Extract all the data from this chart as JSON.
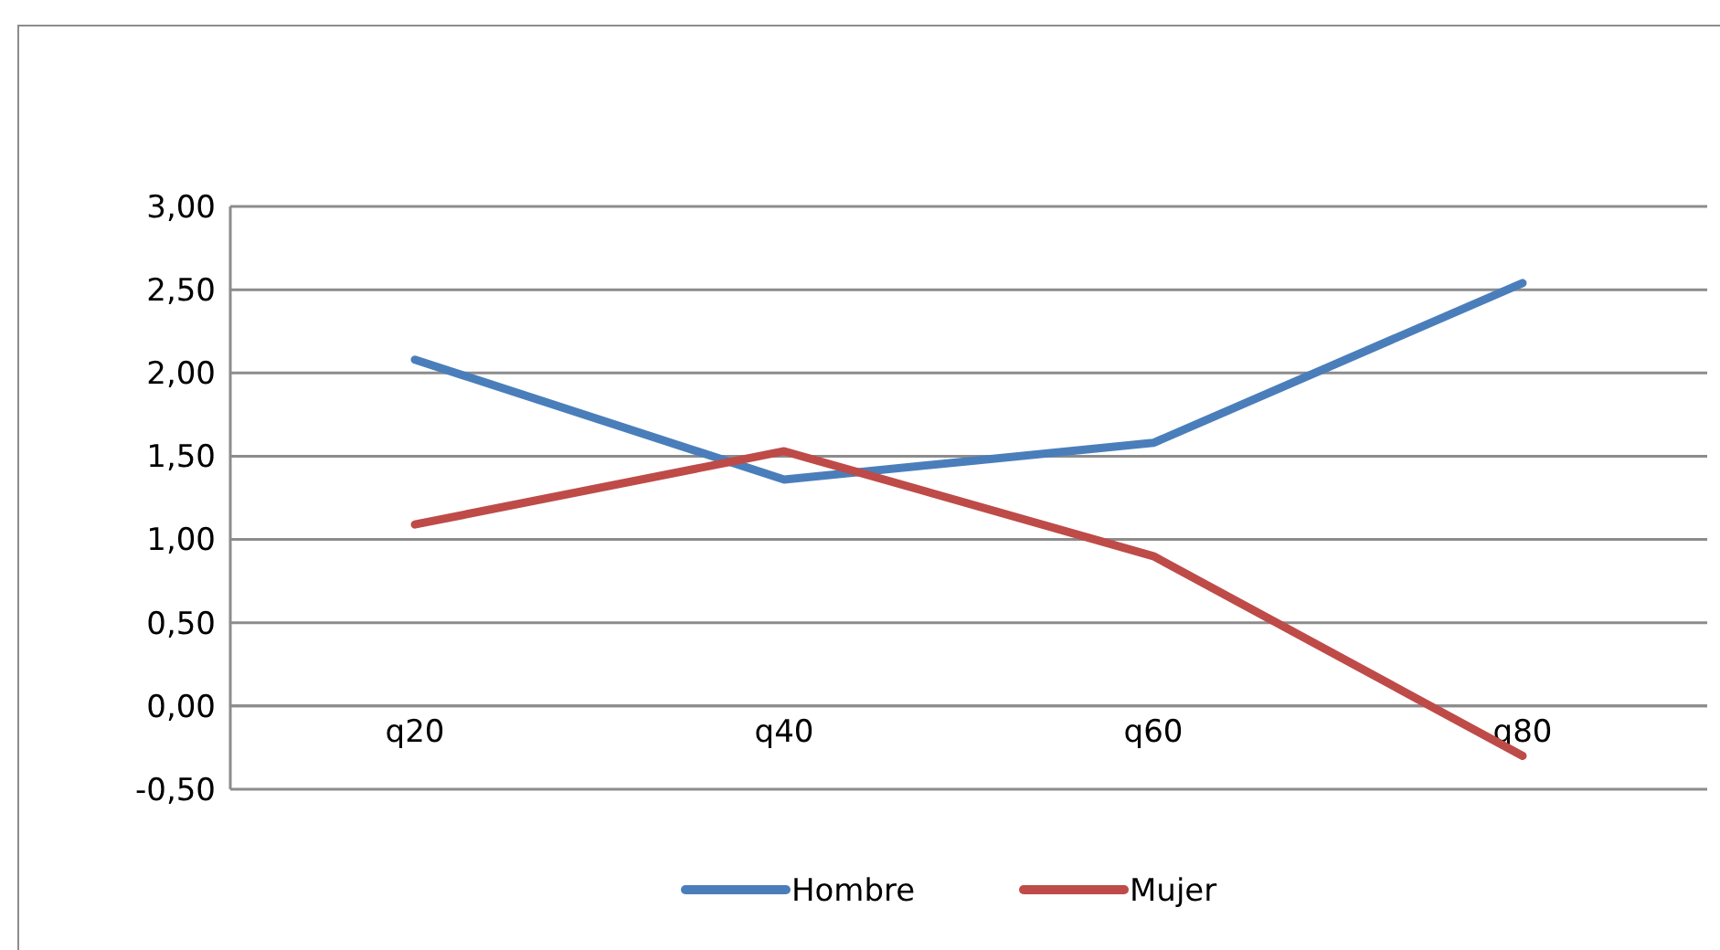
{
  "chart_data": {
    "type": "line",
    "categories": [
      "q20",
      "q40",
      "q60",
      "q80"
    ],
    "series": [
      {
        "name": "Hombre",
        "color": "#4a7ebb",
        "values": [
          2.08,
          1.36,
          1.58,
          2.54
        ]
      },
      {
        "name": "Mujer",
        "color": "#be4b48",
        "values": [
          1.09,
          1.53,
          0.9,
          -0.3
        ]
      }
    ],
    "ylim": [
      -0.5,
      3
    ],
    "yticks": [
      {
        "value": -0.5,
        "label": "-0,50"
      },
      {
        "value": 0,
        "label": "0,00"
      },
      {
        "value": 0.5,
        "label": "0,50"
      },
      {
        "value": 1,
        "label": "1,00"
      },
      {
        "value": 1.5,
        "label": "1,50"
      },
      {
        "value": 2,
        "label": "2,00"
      },
      {
        "value": 2.5,
        "label": "2,50"
      },
      {
        "value": 3,
        "label": "3,00"
      }
    ],
    "grid": "y",
    "legend": "bottom",
    "marker": "none",
    "line_style": "solid"
  }
}
